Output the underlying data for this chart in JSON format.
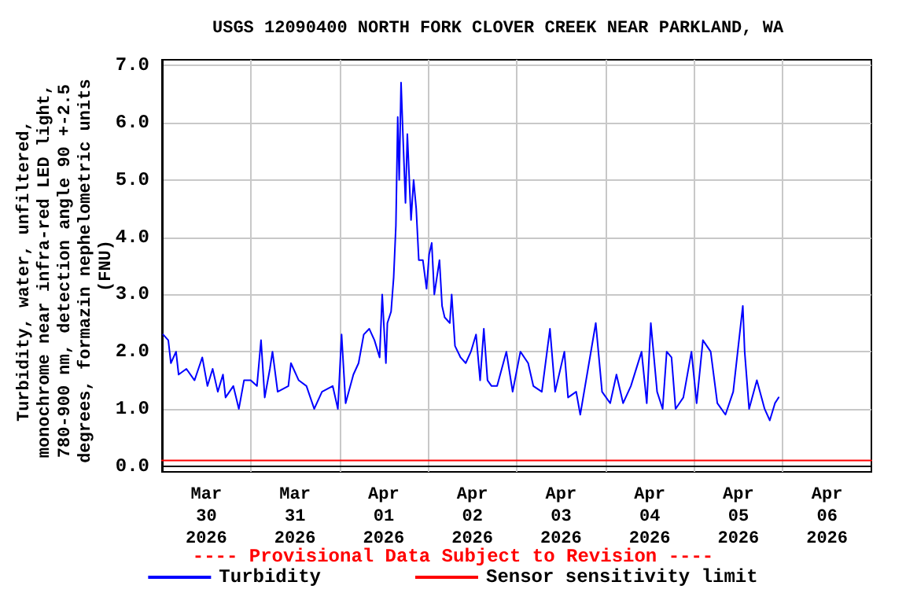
{
  "chart_data": {
    "type": "line",
    "title": "USGS 12090400 NORTH FORK CLOVER CREEK NEAR PARKLAND, WA",
    "ylabel": "Turbidity, water, unfiltered, monochrome near infra-red LED light, 780-900 nm, detection angle 90 +-2.5 degrees, formazin nephelometric units (FNU)",
    "annotations": [
      "---- Provisional Data Subject to Revision ----"
    ],
    "x": [
      "2026-03-30T00:18",
      "2026-03-30T01:42",
      "2026-03-30T02:24",
      "2026-03-30T03:48",
      "2026-03-30T04:30",
      "2026-03-30T06:36",
      "2026-03-30T08:48",
      "2026-03-30T10:54",
      "2026-03-30T12:18",
      "2026-03-30T13:42",
      "2026-03-30T15:06",
      "2026-03-30T16:30",
      "2026-03-30T17:12",
      "2026-03-30T19:18",
      "2026-03-30T20:48",
      "2026-03-30T22:12",
      "2026-03-31T00:00",
      "2026-03-31T01:42",
      "2026-03-31T02:48",
      "2026-03-31T03:48",
      "2026-03-31T05:12",
      "2026-03-31T05:54",
      "2026-03-31T07:18",
      "2026-03-31T10:12",
      "2026-03-31T10:54",
      "2026-03-31T13:00",
      "2026-03-31T15:06",
      "2026-03-31T17:12",
      "2026-03-31T19:18",
      "2026-03-31T22:12",
      "2026-03-31T23:36",
      "2026-04-01T00:36",
      "2026-04-01T01:42",
      "2026-04-01T03:48",
      "2026-04-01T05:12",
      "2026-04-01T06:36",
      "2026-04-01T08:06",
      "2026-04-01T09:30",
      "2026-04-01T10:54",
      "2026-04-01T11:36",
      "2026-04-01T12:36",
      "2026-04-01T13:00",
      "2026-04-01T14:00",
      "2026-04-01T14:42",
      "2026-04-01T15:18",
      "2026-04-01T15:48",
      "2026-04-01T16:12",
      "2026-04-01T16:42",
      "2026-04-01T17:12",
      "2026-04-01T17:54",
      "2026-04-01T18:24",
      "2026-04-01T19:24",
      "2026-04-01T20:06",
      "2026-04-01T20:48",
      "2026-04-01T21:30",
      "2026-04-01T22:36",
      "2026-04-01T23:36",
      "2026-04-02T00:18",
      "2026-04-02T01:00",
      "2026-04-02T01:42",
      "2026-04-02T03:06",
      "2026-04-02T03:48",
      "2026-04-02T04:30",
      "2026-04-02T05:54",
      "2026-04-02T06:24",
      "2026-04-02T07:18",
      "2026-04-02T08:48",
      "2026-04-02T10:12",
      "2026-04-02T11:36",
      "2026-04-02T13:00",
      "2026-04-02T14:06",
      "2026-04-02T15:06",
      "2026-04-02T16:06",
      "2026-04-02T17:12",
      "2026-04-02T18:42",
      "2026-04-02T21:12",
      "2026-04-02T22:54",
      "2026-04-03T01:00",
      "2026-04-03T03:06",
      "2026-04-03T04:30",
      "2026-04-03T06:48",
      "2026-04-03T09:00",
      "2026-04-03T10:24",
      "2026-04-03T12:54",
      "2026-04-03T13:54",
      "2026-04-03T16:06",
      "2026-04-03T17:12",
      "2026-04-03T19:18",
      "2026-04-03T21:24",
      "2026-04-03T23:06",
      "2026-04-04T01:18",
      "2026-04-04T03:00",
      "2026-04-04T04:48",
      "2026-04-04T06:54",
      "2026-04-04T09:48",
      "2026-04-04T11:12",
      "2026-04-04T12:18",
      "2026-04-04T14:00",
      "2026-04-04T15:30",
      "2026-04-04T16:36",
      "2026-04-04T17:54",
      "2026-04-04T19:00",
      "2026-04-04T21:06",
      "2026-04-04T23:18",
      "2026-04-05T00:42",
      "2026-04-05T02:24",
      "2026-04-05T04:30",
      "2026-04-05T06:18",
      "2026-04-05T08:30",
      "2026-04-05T10:36",
      "2026-04-05T13:12",
      "2026-04-05T13:42",
      "2026-04-05T14:54",
      "2026-04-05T17:00",
      "2026-04-05T19:06",
      "2026-04-05T20:30",
      "2026-04-05T21:54",
      "2026-04-05T22:54"
    ],
    "series": [
      {
        "name": "Turbidity",
        "color": "#0000ff",
        "values": [
          2.3,
          2.2,
          1.8,
          2.0,
          1.6,
          1.7,
          1.5,
          1.9,
          1.4,
          1.7,
          1.3,
          1.6,
          1.2,
          1.4,
          1.0,
          1.5,
          1.5,
          1.4,
          2.2,
          1.2,
          1.7,
          2.0,
          1.3,
          1.4,
          1.8,
          1.5,
          1.4,
          1.0,
          1.3,
          1.4,
          1.0,
          2.3,
          1.1,
          1.6,
          1.8,
          2.3,
          2.4,
          2.2,
          1.9,
          3.0,
          1.8,
          2.5,
          2.7,
          3.3,
          4.2,
          6.1,
          5.0,
          6.7,
          5.8,
          4.6,
          5.8,
          4.3,
          5.0,
          4.5,
          3.6,
          3.6,
          3.1,
          3.7,
          3.9,
          3.0,
          3.6,
          2.8,
          2.6,
          2.5,
          3.0,
          2.1,
          1.9,
          1.8,
          2.0,
          2.3,
          1.5,
          2.4,
          1.5,
          1.4,
          1.4,
          2.0,
          1.3,
          2.0,
          1.8,
          1.4,
          1.3,
          2.4,
          1.3,
          2.0,
          1.2,
          1.3,
          0.9,
          1.7,
          2.5,
          1.3,
          1.1,
          1.6,
          1.1,
          1.4,
          2.0,
          1.1,
          2.5,
          1.3,
          1.0,
          2.0,
          1.9,
          1.0,
          1.2,
          2.0,
          1.1,
          2.2,
          2.0,
          1.1,
          0.9,
          1.3,
          2.8,
          2.0,
          1.0,
          1.5,
          1.0,
          0.8,
          1.1,
          1.2
        ]
      },
      {
        "name": "Sensor sensitivity limit",
        "color": "#ff0000",
        "x": [
          "2026-03-30T00:00",
          "2026-04-07T00:00"
        ],
        "values": [
          0.1,
          0.1
        ]
      }
    ],
    "xlim": [
      "2026-03-30T00:00",
      "2026-04-07T00:00"
    ],
    "xticks": [
      {
        "value": "2026-03-30T12:00",
        "label": "Mar 30 2026"
      },
      {
        "value": "2026-03-31T00:00",
        "label": null
      },
      {
        "value": "2026-03-31T12:00",
        "label": "Mar 31 2026"
      },
      {
        "value": "2026-04-01T00:00",
        "label": null
      },
      {
        "value": "2026-04-01T12:00",
        "label": "Apr 01 2026"
      },
      {
        "value": "2026-04-02T00:00",
        "label": null
      },
      {
        "value": "2026-04-02T12:00",
        "label": "Apr 02 2026"
      },
      {
        "value": "2026-04-03T00:00",
        "label": null
      },
      {
        "value": "2026-04-03T12:00",
        "label": "Apr 03 2026"
      },
      {
        "value": "2026-04-04T00:00",
        "label": null
      },
      {
        "value": "2026-04-04T12:00",
        "label": "Apr 04 2026"
      },
      {
        "value": "2026-04-05T00:00",
        "label": null
      },
      {
        "value": "2026-04-05T12:00",
        "label": "Apr 05 2026"
      },
      {
        "value": "2026-04-06T00:00",
        "label": null
      },
      {
        "value": "2026-04-06T12:00",
        "label": "Apr 06 2026"
      }
    ],
    "ylim": [
      -0.1,
      7.1
    ],
    "yticks": [
      {
        "value": 0,
        "label": "0.0"
      },
      {
        "value": 1,
        "label": "1.0"
      },
      {
        "value": 2,
        "label": "2.0"
      },
      {
        "value": 3,
        "label": "3.0"
      },
      {
        "value": 4,
        "label": "4.0"
      },
      {
        "value": 5,
        "label": "5.0"
      },
      {
        "value": 6,
        "label": "6.0"
      },
      {
        "value": 7,
        "label": "7.0"
      }
    ],
    "grid": true,
    "legend": "bottom",
    "marker": "none",
    "line_style": "solid"
  }
}
